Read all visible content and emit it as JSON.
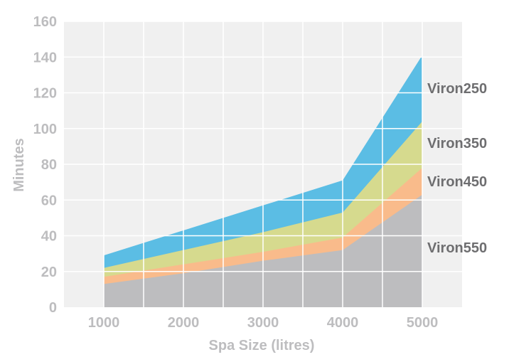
{
  "chart_data": {
    "type": "area",
    "stacked": false,
    "title": "",
    "xlabel": "Spa Size (litres)",
    "ylabel": "Minutes",
    "x": [
      1000,
      2000,
      3000,
      4000,
      5000
    ],
    "x_ticks": [
      "1000",
      "2000",
      "3000",
      "4000",
      "5000"
    ],
    "xlim": [
      500,
      5500
    ],
    "y_ticks": [
      "0",
      "20",
      "40",
      "60",
      "80",
      "100",
      "120",
      "140",
      "160"
    ],
    "ylim": [
      0,
      160
    ],
    "grid": true,
    "series": [
      {
        "name": "Viron250",
        "values": [
          29,
          43,
          57,
          71,
          141
        ],
        "color": "#5bbde4"
      },
      {
        "name": "Viron350",
        "values": [
          22,
          32,
          42,
          53,
          104
        ],
        "color": "#d6da8e"
      },
      {
        "name": "Viron450",
        "values": [
          17,
          24,
          31,
          39,
          78
        ],
        "color": "#f9bb8b"
      },
      {
        "name": "Viron550",
        "values": [
          13,
          19,
          26,
          32,
          63
        ],
        "color": "#bdbdbf"
      }
    ],
    "background_color": "#f0f0f0",
    "grid_color": "#ffffff"
  }
}
